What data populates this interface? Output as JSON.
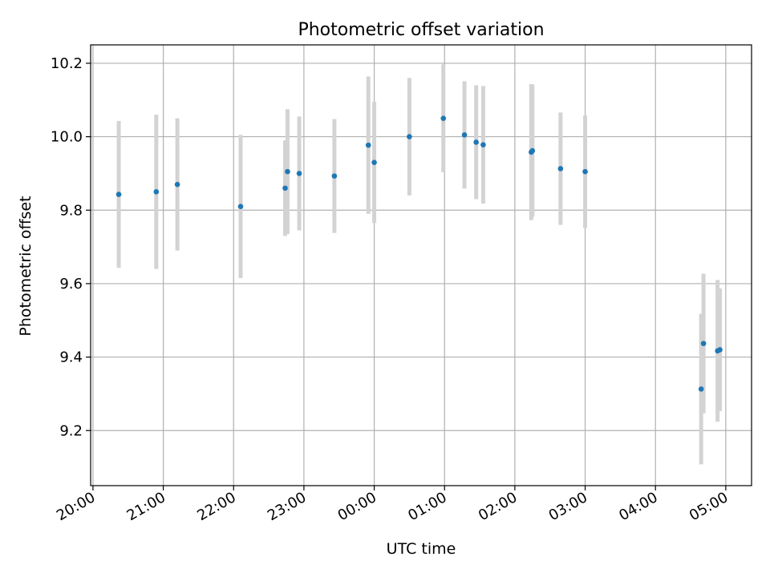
{
  "chart_data": {
    "type": "scatter",
    "title": "Photometric offset variation",
    "xlabel": "UTC time",
    "ylabel": "Photometric offset",
    "x_ticks": [
      "20:00",
      "21:00",
      "22:00",
      "23:00",
      "00:00",
      "01:00",
      "02:00",
      "03:00",
      "04:00",
      "05:00"
    ],
    "y_ticks": [
      "9.2",
      "9.4",
      "9.6",
      "9.8",
      "10.0",
      "10.2"
    ],
    "y_tick_values": [
      9.2,
      9.4,
      9.6,
      9.8,
      10.0,
      10.2
    ],
    "xlim": [
      "19:58",
      "05:22"
    ],
    "ylim": [
      9.05,
      10.25
    ],
    "grid": true,
    "colors": {
      "marker": "#1f77b4",
      "errorbar": "#d3d3d3",
      "grid": "#b0b0b0"
    },
    "points": [
      {
        "x": "20:22",
        "y": 9.843,
        "err": 0.2
      },
      {
        "x": "20:54",
        "y": 9.85,
        "err": 0.21
      },
      {
        "x": "21:12",
        "y": 9.87,
        "err": 0.18
      },
      {
        "x": "22:06",
        "y": 9.81,
        "err": 0.195
      },
      {
        "x": "22:44",
        "y": 9.86,
        "err": 0.13
      },
      {
        "x": "22:46",
        "y": 9.905,
        "err": 0.17
      },
      {
        "x": "22:56",
        "y": 9.9,
        "err": 0.155
      },
      {
        "x": "23:26",
        "y": 9.893,
        "err": 0.155
      },
      {
        "x": "23:55",
        "y": 9.977,
        "err": 0.187
      },
      {
        "x": "00:00",
        "y": 9.93,
        "err": 0.165
      },
      {
        "x": "00:30",
        "y": 10.0,
        "err": 0.16
      },
      {
        "x": "00:59",
        "y": 10.05,
        "err": 0.147
      },
      {
        "x": "01:17",
        "y": 10.005,
        "err": 0.146
      },
      {
        "x": "01:27",
        "y": 9.985,
        "err": 0.155
      },
      {
        "x": "01:33",
        "y": 9.978,
        "err": 0.16
      },
      {
        "x": "02:14",
        "y": 9.958,
        "err": 0.185
      },
      {
        "x": "02:15",
        "y": 9.962,
        "err": 0.18
      },
      {
        "x": "02:39",
        "y": 9.913,
        "err": 0.153
      },
      {
        "x": "03:00",
        "y": 9.905,
        "err": 0.153
      },
      {
        "x": "04:39",
        "y": 9.313,
        "err": 0.205
      },
      {
        "x": "04:41",
        "y": 9.437,
        "err": 0.19
      },
      {
        "x": "04:53",
        "y": 9.417,
        "err": 0.193
      },
      {
        "x": "04:55",
        "y": 9.42,
        "err": 0.167
      }
    ]
  }
}
